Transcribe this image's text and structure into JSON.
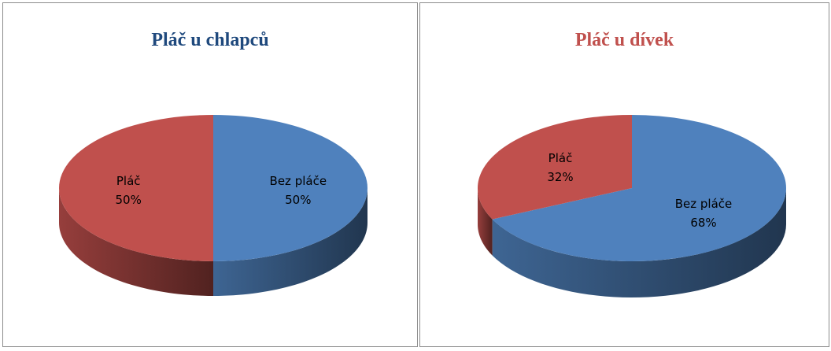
{
  "charts": [
    {
      "title": "Pláč u chlapců",
      "title_color": "#1F497D",
      "chart_data": {
        "type": "pie",
        "title": "Pláč u chlapců",
        "start": "top",
        "direction": "clockwise",
        "style": "3d",
        "slices": [
          {
            "label": "Bez pláče",
            "value_label": "50%",
            "value": 50,
            "color": "#4F81BD"
          },
          {
            "label": "Pláč",
            "value_label": "50%",
            "value": 50,
            "color": "#C0504D"
          }
        ]
      }
    },
    {
      "title": "Pláč u dívek",
      "title_color": "#C0504D",
      "chart_data": {
        "type": "pie",
        "title": "Pláč u dívek",
        "start": "top",
        "direction": "clockwise",
        "style": "3d",
        "slices": [
          {
            "label": "Bez pláče",
            "value_label": "68%",
            "value": 68,
            "color": "#4F81BD"
          },
          {
            "label": "Pláč",
            "value_label": "32%",
            "value": 32,
            "color": "#C0504D"
          }
        ]
      }
    }
  ]
}
